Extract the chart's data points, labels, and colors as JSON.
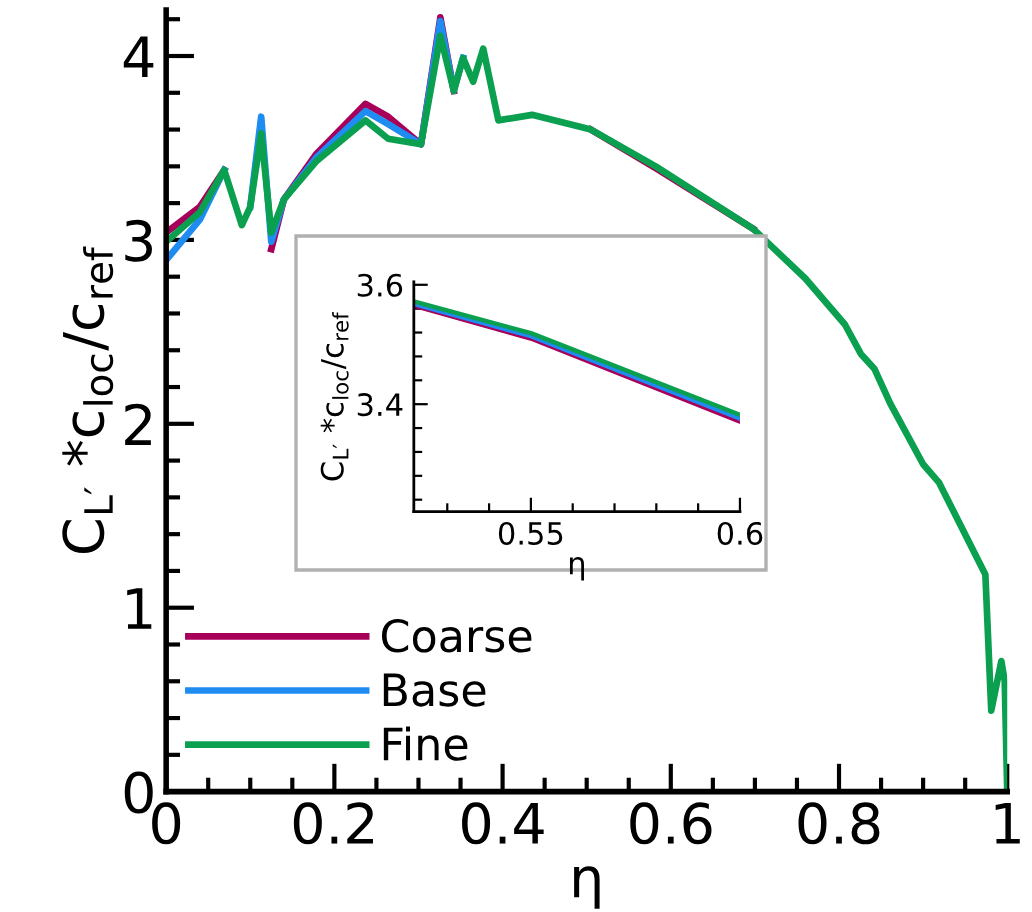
{
  "chart_data": [
    {
      "type": "line",
      "xlabel": "η",
      "ylabel": "C$_{L′}$ *c$_{loc}$/c$_{ref}$",
      "xlim": [
        0,
        1
      ],
      "ylim": [
        0,
        4.25
      ],
      "xticks": [
        0,
        0.2,
        0.4,
        0.6,
        0.8,
        1
      ],
      "yticks": [
        0,
        1,
        2,
        3,
        4
      ],
      "legend": "bottom left",
      "line_style": "solid",
      "x": [
        0,
        0.04,
        0.069,
        0.09,
        0.1,
        0.113,
        0.125,
        0.14,
        0.179,
        0.237,
        0.264,
        0.303,
        0.326,
        0.342,
        0.353,
        0.365,
        0.377,
        0.395,
        0.435,
        0.505,
        0.582,
        0.698,
        0.76,
        0.807,
        0.826,
        0.842,
        0.861,
        0.9,
        0.919,
        0.974,
        0.981,
        0.993,
        0.997,
        1.0
      ],
      "series": [
        {
          "name": "Coarse",
          "color": "#a8005a",
          "values": [
            3.04,
            3.18,
            3.38,
            null,
            null,
            null,
            2.95,
            3.22,
            3.47,
            3.74,
            3.67,
            3.52,
            4.21,
            3.81,
            null,
            null,
            null,
            null,
            null,
            3.6,
            3.39,
            3.06,
            null,
            null,
            null,
            null,
            null,
            null,
            null,
            null,
            null,
            null,
            null,
            null
          ]
        },
        {
          "name": "Base",
          "color": "#1e8cf0",
          "values": [
            2.89,
            3.11,
            3.38,
            null,
            3.18,
            3.67,
            2.99,
            3.22,
            3.45,
            3.7,
            3.63,
            3.52,
            4.19,
            3.81,
            3.99,
            null,
            null,
            null,
            null,
            null,
            null,
            null,
            null,
            null,
            null,
            null,
            null,
            null,
            null,
            null,
            null,
            null,
            null,
            null
          ]
        },
        {
          "name": "Fine",
          "color": "#0aa050",
          "values": [
            2.99,
            3.15,
            3.38,
            3.08,
            3.18,
            3.58,
            3.04,
            3.22,
            3.43,
            3.65,
            3.55,
            3.52,
            4.11,
            3.81,
            3.99,
            3.86,
            4.04,
            3.65,
            3.68,
            3.6,
            3.4,
            3.06,
            2.79,
            2.54,
            2.38,
            2.3,
            2.11,
            1.78,
            1.68,
            1.18,
            0.44,
            0.71,
            0.6,
            0
          ]
        }
      ]
    },
    {
      "type": "line",
      "xlabel": "η",
      "ylabel": "C$_{L′}$ *c$_{loc}$/c$_{ref}$",
      "xlim": [
        0.522,
        0.6
      ],
      "ylim": [
        3.22,
        3.605
      ],
      "xticks": [
        0.55,
        0.6
      ],
      "yticks": [
        3.4,
        3.6
      ],
      "line_style": "solid",
      "x": [
        0.522,
        0.55,
        0.6
      ],
      "series": [
        {
          "color": "#a8005a",
          "values": [
            3.565,
            3.51,
            3.371
          ]
        },
        {
          "color": "#1e8cf0",
          "values": [
            3.568,
            3.514,
            3.376
          ]
        },
        {
          "color": "#0aa050",
          "values": [
            3.572,
            3.519,
            3.382
          ]
        }
      ]
    }
  ]
}
